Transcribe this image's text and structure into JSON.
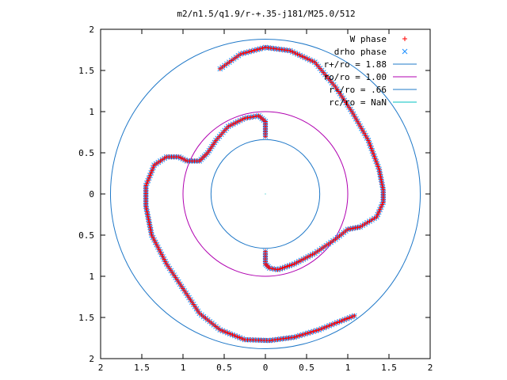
{
  "chart_data": {
    "type": "scatter",
    "title": "m2/n1.5/q1.9/r-+.35-j181/M25.0/512",
    "xlabel": "",
    "ylabel": "",
    "xlim": [
      -2,
      2
    ],
    "ylim": [
      -2,
      2
    ],
    "x_ticks": [
      "2",
      "1.5",
      "1",
      "0.5",
      "0",
      "0.5",
      "1",
      "1.5",
      "2"
    ],
    "y_ticks": [
      "2",
      "1.5",
      "1",
      "0.5",
      "0",
      "0.5",
      "1",
      "1.5",
      "2"
    ],
    "grid": false,
    "legend_position": "top-right",
    "legend": [
      {
        "label": "W phase",
        "color": "#ff0000",
        "marker": "plus"
      },
      {
        "label": "drho phase",
        "color": "#1e90ff",
        "marker": "cross"
      },
      {
        "label": "r+/ro = 1.88",
        "color": "#1f78c8",
        "marker": "line"
      },
      {
        "label": "ro/ro = 1.00",
        "color": "#b000b0",
        "marker": "line"
      },
      {
        "label": "r-/ro = .66",
        "color": "#1f78c8",
        "marker": "line"
      },
      {
        "label": "rc/ro = NaN",
        "color": "#00c0c0",
        "marker": "line"
      }
    ],
    "circles": [
      {
        "radius": 1.88,
        "color": "#1f78c8"
      },
      {
        "radius": 1.0,
        "color": "#b000b0"
      },
      {
        "radius": 0.66,
        "color": "#1f78c8"
      }
    ],
    "series": [
      {
        "name": "drho phase",
        "color": "#1e90ff",
        "segments": [
          [
            [
              -0.55,
              1.52
            ],
            [
              -0.3,
              1.7
            ],
            [
              0,
              1.78
            ],
            [
              0.3,
              1.74
            ],
            [
              0.6,
              1.6
            ],
            [
              0.85,
              1.3
            ],
            [
              1.05,
              1.0
            ],
            [
              1.25,
              0.65
            ],
            [
              1.38,
              0.3
            ],
            [
              1.43,
              0.05
            ],
            [
              1.43,
              -0.1
            ],
            [
              1.35,
              -0.28
            ],
            [
              1.15,
              -0.4
            ],
            [
              1.0,
              -0.43
            ],
            [
              0.85,
              -0.55
            ],
            [
              0.6,
              -0.72
            ],
            [
              0.35,
              -0.85
            ],
            [
              0.15,
              -0.92
            ],
            [
              0.05,
              -0.9
            ],
            [
              0.0,
              -0.85
            ],
            [
              0.0,
              -0.7
            ]
          ],
          [
            [
              0.0,
              0.7
            ],
            [
              0.0,
              0.88
            ],
            [
              -0.08,
              0.95
            ],
            [
              -0.25,
              0.92
            ],
            [
              -0.45,
              0.82
            ],
            [
              -0.6,
              0.65
            ],
            [
              -0.7,
              0.5
            ],
            [
              -0.8,
              0.4
            ],
            [
              -0.95,
              0.4
            ],
            [
              -1.05,
              0.45
            ],
            [
              -1.2,
              0.45
            ],
            [
              -1.35,
              0.35
            ],
            [
              -1.45,
              0.1
            ],
            [
              -1.45,
              -0.15
            ],
            [
              -1.38,
              -0.5
            ],
            [
              -1.2,
              -0.85
            ],
            [
              -1.0,
              -1.15
            ],
            [
              -0.8,
              -1.45
            ],
            [
              -0.55,
              -1.65
            ],
            [
              -0.25,
              -1.77
            ],
            [
              0.05,
              -1.78
            ],
            [
              0.35,
              -1.74
            ],
            [
              0.65,
              -1.65
            ],
            [
              0.9,
              -1.55
            ],
            [
              1.08,
              -1.48
            ]
          ]
        ]
      },
      {
        "name": "W phase",
        "color": "#ff0000",
        "segments": [
          [
            [
              -0.55,
              1.52
            ],
            [
              -0.3,
              1.7
            ],
            [
              0,
              1.78
            ],
            [
              0.3,
              1.74
            ],
            [
              0.6,
              1.6
            ],
            [
              0.85,
              1.3
            ],
            [
              1.05,
              1.0
            ],
            [
              1.25,
              0.65
            ],
            [
              1.38,
              0.3
            ],
            [
              1.43,
              0.05
            ],
            [
              1.43,
              -0.1
            ],
            [
              1.35,
              -0.28
            ],
            [
              1.15,
              -0.4
            ],
            [
              1.0,
              -0.43
            ],
            [
              0.85,
              -0.55
            ],
            [
              0.6,
              -0.72
            ],
            [
              0.35,
              -0.85
            ],
            [
              0.15,
              -0.92
            ],
            [
              0.05,
              -0.9
            ],
            [
              0.0,
              -0.85
            ],
            [
              0.0,
              -0.7
            ]
          ],
          [
            [
              0.0,
              0.7
            ],
            [
              0.0,
              0.88
            ],
            [
              -0.08,
              0.95
            ],
            [
              -0.25,
              0.92
            ],
            [
              -0.45,
              0.82
            ],
            [
              -0.6,
              0.65
            ],
            [
              -0.7,
              0.5
            ],
            [
              -0.8,
              0.4
            ],
            [
              -0.95,
              0.4
            ],
            [
              -1.05,
              0.45
            ],
            [
              -1.2,
              0.45
            ],
            [
              -1.35,
              0.35
            ],
            [
              -1.45,
              0.1
            ],
            [
              -1.45,
              -0.15
            ],
            [
              -1.38,
              -0.5
            ],
            [
              -1.2,
              -0.85
            ],
            [
              -1.0,
              -1.15
            ],
            [
              -0.8,
              -1.45
            ],
            [
              -0.55,
              -1.65
            ],
            [
              -0.25,
              -1.77
            ],
            [
              0.05,
              -1.78
            ],
            [
              0.35,
              -1.74
            ],
            [
              0.65,
              -1.65
            ],
            [
              0.9,
              -1.55
            ],
            [
              1.08,
              -1.48
            ]
          ]
        ]
      }
    ]
  }
}
